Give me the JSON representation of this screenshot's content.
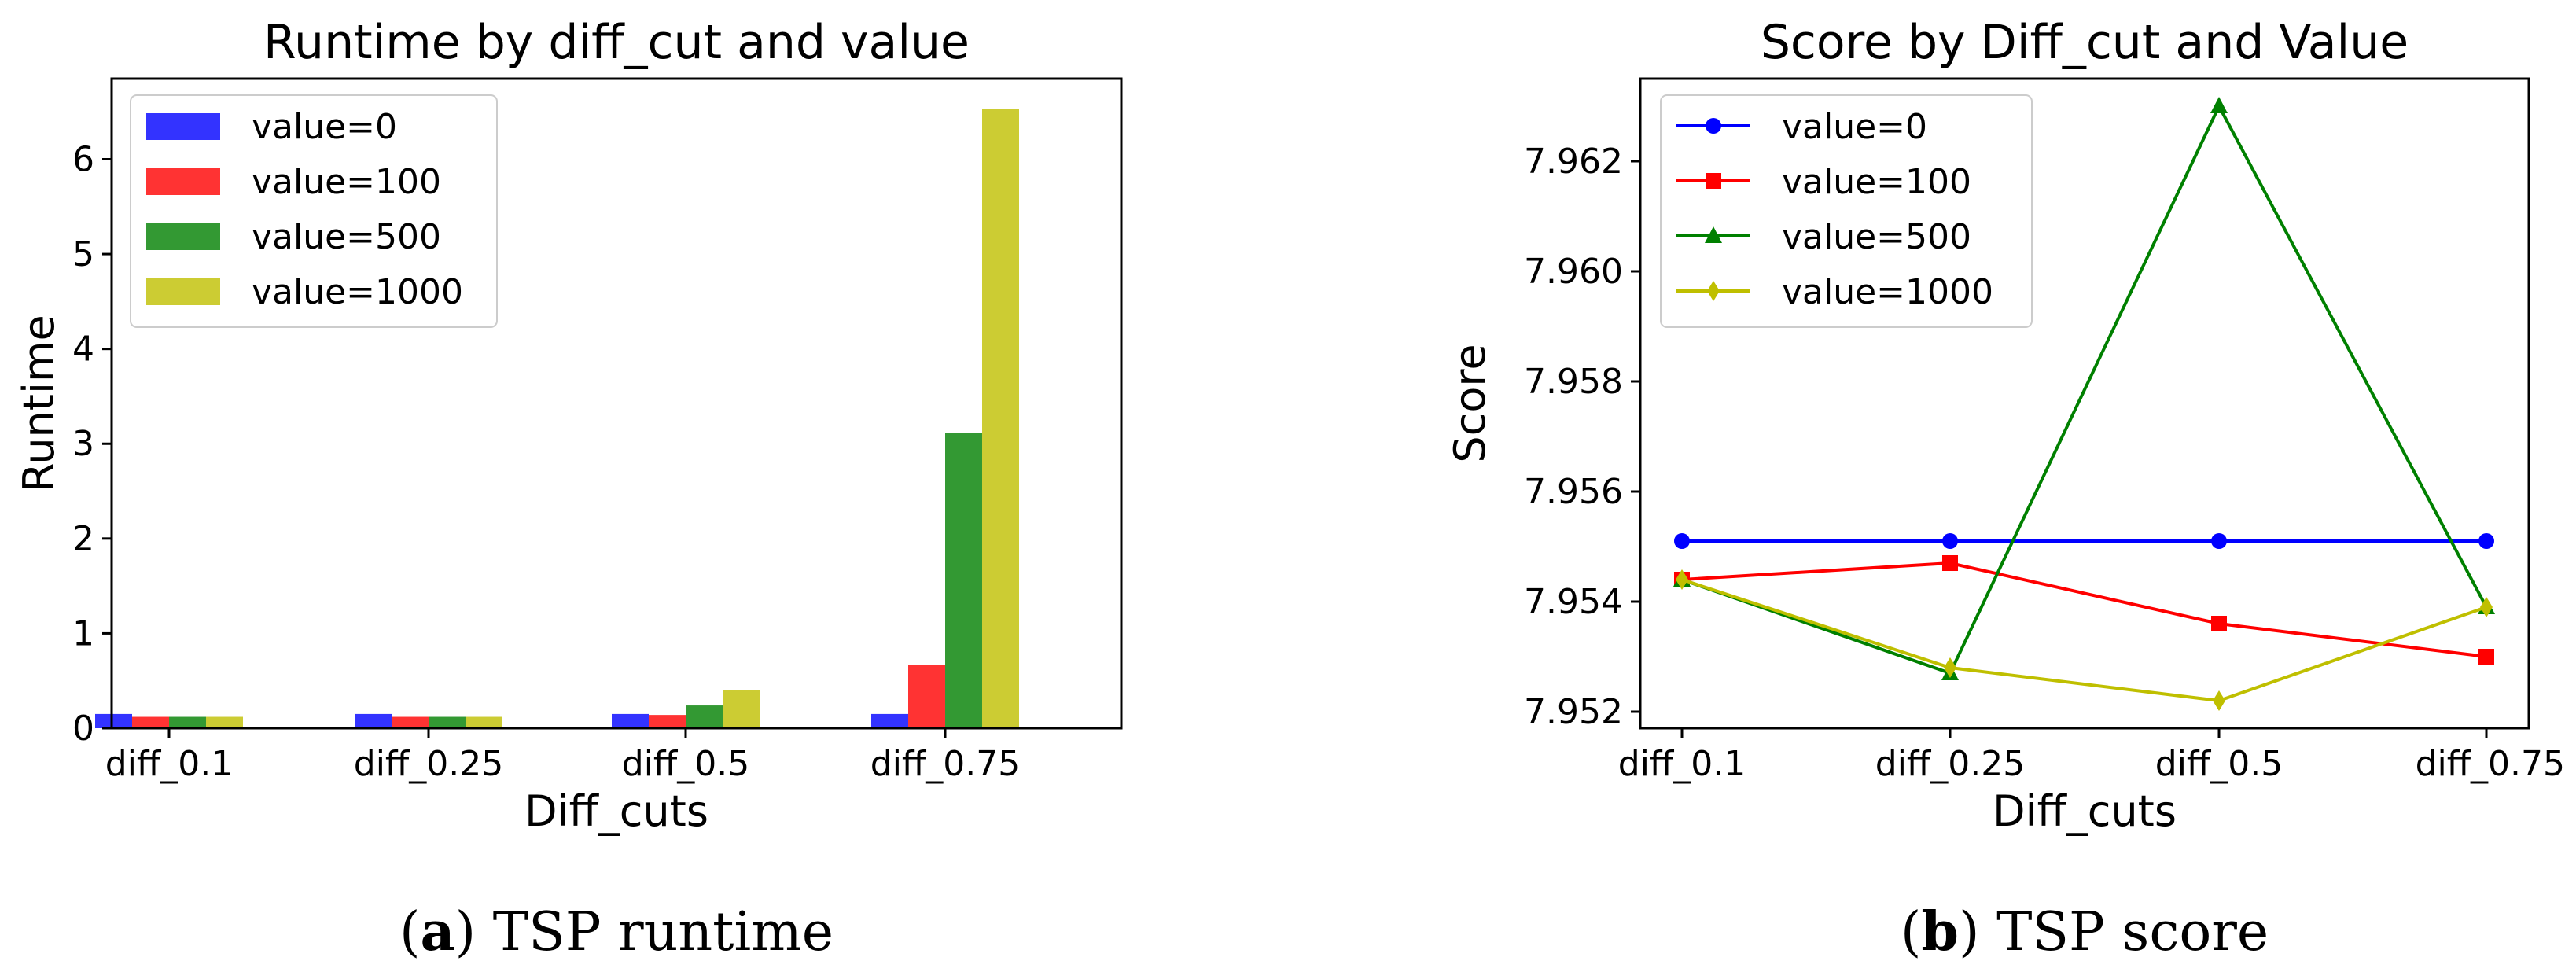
{
  "chart_data": [
    {
      "type": "bar",
      "title": "Runtime by diff_cut and value",
      "xlabel": "Diff_cuts",
      "ylabel": "Runtime",
      "categories": [
        "diff_0.1",
        "diff_0.25",
        "diff_0.5",
        "diff_0.75"
      ],
      "ylim": [
        0,
        6.85
      ],
      "yticks": [
        "0",
        "1",
        "2",
        "3",
        "4",
        "5",
        "6"
      ],
      "grid": false,
      "legend_position": "top-left",
      "series": [
        {
          "name": "value=0",
          "color": "#3333ff",
          "values": [
            0.15,
            0.15,
            0.15,
            0.15
          ]
        },
        {
          "name": "value=100",
          "color": "#ff3333",
          "values": [
            0.12,
            0.12,
            0.14,
            0.67
          ]
        },
        {
          "name": "value=500",
          "color": "#339933",
          "values": [
            0.12,
            0.12,
            0.24,
            3.11
          ]
        },
        {
          "name": "value=1000",
          "color": "#cccc33",
          "values": [
            0.12,
            0.12,
            0.4,
            6.53
          ]
        }
      ],
      "caption_label": "a",
      "caption_text": " TSP runtime"
    },
    {
      "type": "line",
      "title": "Score by Diff_cut and Value",
      "xlabel": "Diff_cuts",
      "ylabel": "Score",
      "categories": [
        "diff_0.1",
        "diff_0.25",
        "diff_0.5",
        "diff_0.75"
      ],
      "ylim": [
        7.9517,
        7.9635
      ],
      "yticks": [
        "7.952",
        "7.954",
        "7.956",
        "7.958",
        "7.960",
        "7.962"
      ],
      "grid": false,
      "legend_position": "top-left",
      "series": [
        {
          "name": "value=0",
          "color": "#0000ff",
          "marker": "circle",
          "values": [
            7.9551,
            7.9551,
            7.9551,
            7.9551
          ]
        },
        {
          "name": "value=100",
          "color": "#ff0000",
          "marker": "square",
          "values": [
            7.9544,
            7.9547,
            7.9536,
            7.953
          ]
        },
        {
          "name": "value=500",
          "color": "#008000",
          "marker": "triangle",
          "values": [
            7.9544,
            7.9527,
            7.963,
            7.9539
          ]
        },
        {
          "name": "value=1000",
          "color": "#bfbf00",
          "marker": "diamond",
          "values": [
            7.9544,
            7.9528,
            7.9522,
            7.9539
          ]
        }
      ],
      "caption_label": "b",
      "caption_text": " TSP score"
    }
  ]
}
